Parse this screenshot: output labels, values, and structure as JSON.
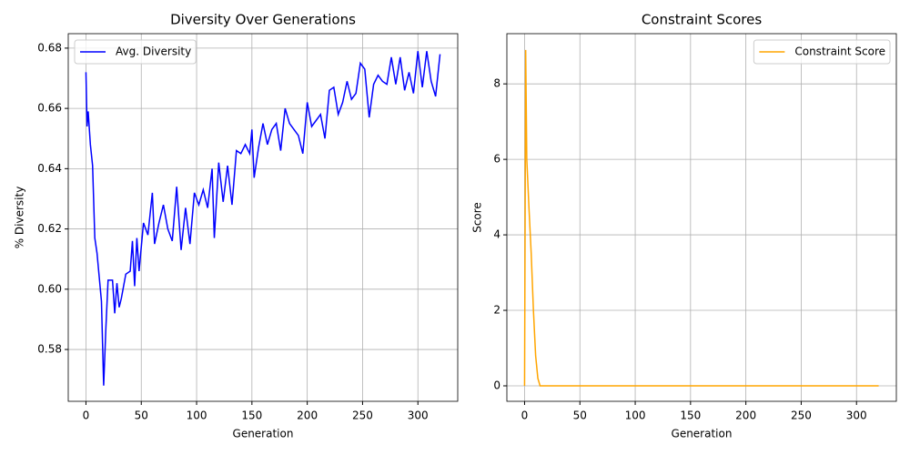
{
  "chart_data": [
    {
      "type": "line",
      "title": "Diversity Over Generations",
      "x_label": "Generation",
      "y_label": "% Diversity",
      "x": [
        0,
        1,
        2,
        4,
        6,
        8,
        10,
        12,
        14,
        16,
        18,
        20,
        22,
        24,
        26,
        28,
        30,
        32,
        36,
        40,
        42,
        44,
        46,
        48,
        52,
        56,
        60,
        62,
        66,
        70,
        74,
        78,
        82,
        86,
        90,
        94,
        98,
        102,
        106,
        110,
        114,
        116,
        120,
        124,
        128,
        132,
        136,
        140,
        144,
        148,
        150,
        152,
        156,
        160,
        164,
        168,
        172,
        176,
        180,
        184,
        188,
        192,
        196,
        200,
        204,
        208,
        212,
        216,
        220,
        224,
        228,
        232,
        236,
        240,
        244,
        248,
        252,
        256,
        260,
        264,
        268,
        272,
        276,
        280,
        284,
        288,
        292,
        296,
        300,
        304,
        308,
        312,
        316,
        320
      ],
      "series": [
        {
          "name": "Avg. Diversity",
          "color": "#0000ff",
          "values": [
            0.672,
            0.654,
            0.659,
            0.648,
            0.641,
            0.617,
            0.612,
            0.604,
            0.596,
            0.568,
            0.587,
            0.603,
            0.603,
            0.603,
            0.592,
            0.602,
            0.594,
            0.597,
            0.605,
            0.606,
            0.616,
            0.601,
            0.617,
            0.606,
            0.622,
            0.618,
            0.632,
            0.615,
            0.622,
            0.628,
            0.62,
            0.616,
            0.634,
            0.613,
            0.627,
            0.615,
            0.632,
            0.628,
            0.633,
            0.627,
            0.64,
            0.617,
            0.642,
            0.629,
            0.641,
            0.628,
            0.646,
            0.645,
            0.648,
            0.645,
            0.653,
            0.637,
            0.647,
            0.655,
            0.648,
            0.653,
            0.655,
            0.646,
            0.66,
            0.655,
            0.653,
            0.651,
            0.645,
            0.662,
            0.654,
            0.656,
            0.658,
            0.65,
            0.666,
            0.667,
            0.658,
            0.662,
            0.669,
            0.663,
            0.665,
            0.675,
            0.673,
            0.657,
            0.668,
            0.671,
            0.669,
            0.668,
            0.677,
            0.668,
            0.677,
            0.666,
            0.672,
            0.665,
            0.679,
            0.667,
            0.679,
            0.669,
            0.664,
            0.678
          ]
        }
      ],
      "xlim": [
        -16,
        336
      ],
      "xticks": [
        0,
        50,
        100,
        150,
        200,
        250,
        300
      ],
      "ylim": [
        0.5628,
        0.6848
      ],
      "yticks": [
        0.58,
        {
          "value": 0.6,
          "label": "0.60"
        },
        0.62,
        0.64,
        0.66,
        0.68
      ],
      "grid": true,
      "legend": "upper left"
    },
    {
      "type": "line",
      "title": "Constraint Scores",
      "x_label": "Generation",
      "y_label": "Score",
      "x": [
        0,
        1,
        2,
        4,
        6,
        8,
        10,
        12,
        14,
        320
      ],
      "series": [
        {
          "name": "Constraint Score",
          "color": "#ffa500",
          "values": [
            0,
            8.9,
            6,
            4.7,
            3.5,
            2,
            0.8,
            0.2,
            0,
            0
          ]
        }
      ],
      "xlim": [
        -16,
        336
      ],
      "xticks": [
        0,
        50,
        100,
        150,
        200,
        250,
        300
      ],
      "ylim": [
        -0.41,
        9.33
      ],
      "yticks": [
        0,
        2,
        4,
        6,
        8
      ],
      "grid": true,
      "legend": "upper right"
    }
  ]
}
